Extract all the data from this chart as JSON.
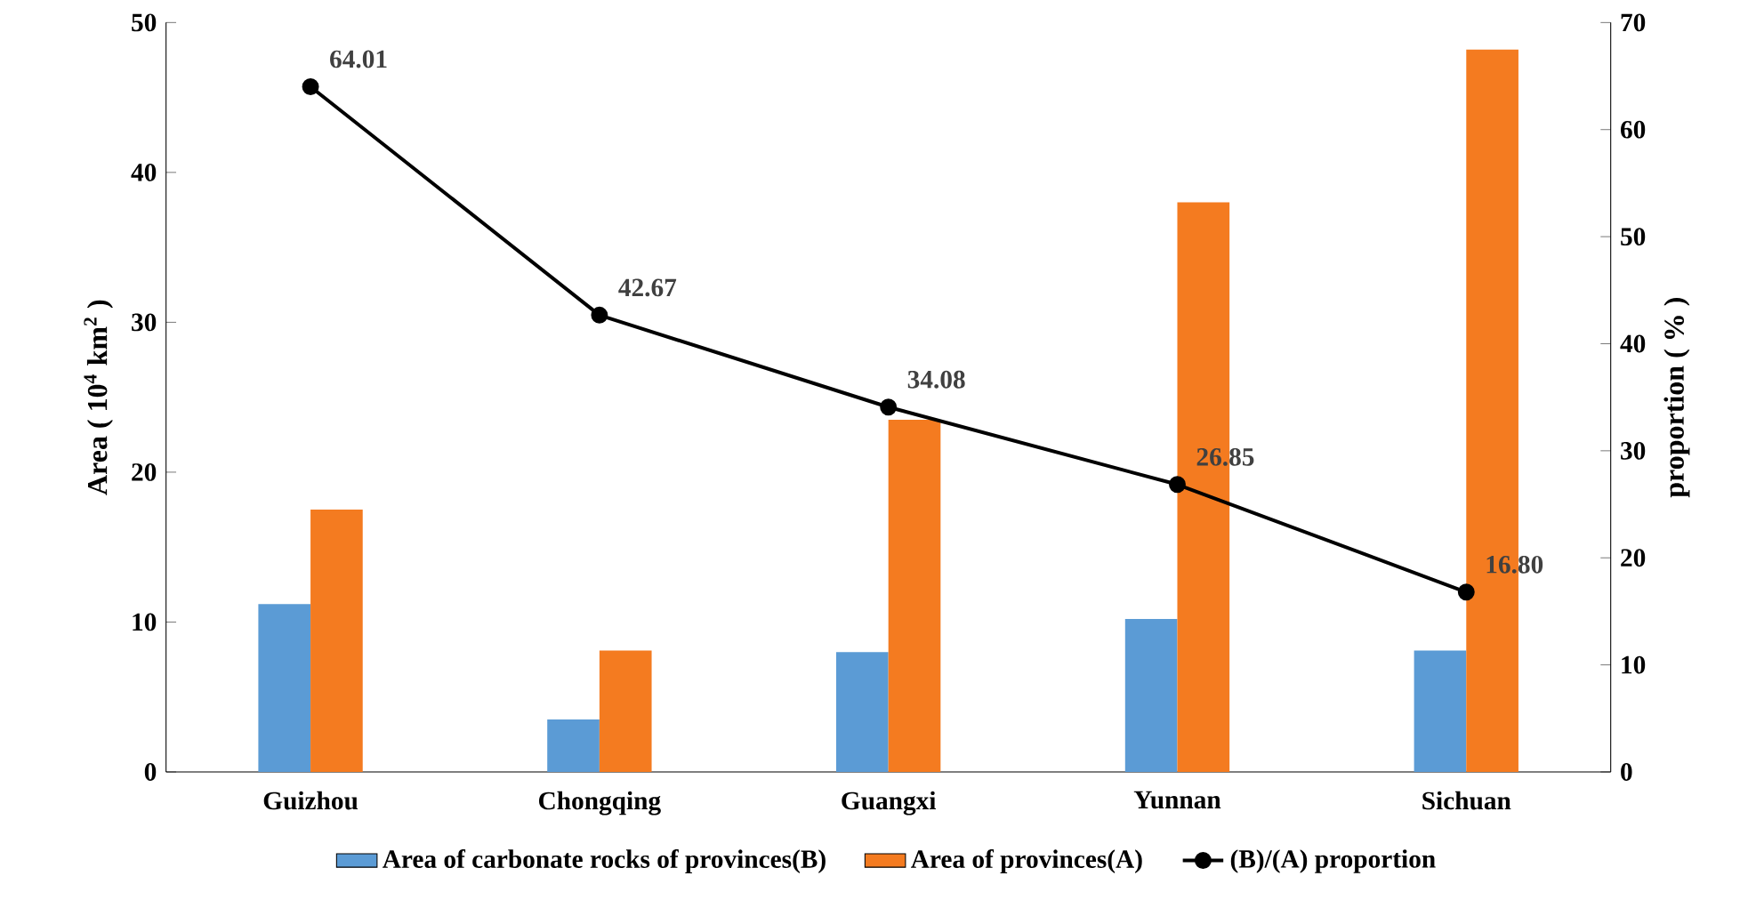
{
  "chart_data": {
    "type": "bar",
    "ylabel": "Area ( 10$^{4}$ km$^{2}$ )",
    "y2label": "proportion ( % )",
    "categories": [
      "Guizhou",
      "Chongqing",
      "Guangxi",
      "Yunnan",
      "Sichuan"
    ],
    "series": [
      {
        "name": "Area of carbonate rocks of provinces(B)",
        "color": "#5b9bd5",
        "values": [
          11.2,
          3.5,
          8.0,
          10.2,
          8.1
        ]
      },
      {
        "name": "Area of provinces(A)",
        "color": "#f47b20",
        "values": [
          17.5,
          8.1,
          23.5,
          38.0,
          48.2
        ]
      },
      {
        "name": "(B)/(A) proportion",
        "type": "line",
        "axis": "y2",
        "color": "#000000",
        "values": [
          64.01,
          42.67,
          34.08,
          26.85,
          16.8
        ],
        "value_labels": [
          "64.01",
          "42.67",
          "34.08",
          "26.85",
          "16.80"
        ]
      }
    ],
    "ylim": [
      0,
      50
    ],
    "yticks": [
      0,
      10,
      20,
      30,
      40,
      50
    ],
    "y2lim": [
      0,
      70
    ],
    "y2ticks": [
      0,
      10,
      20,
      30,
      40,
      50,
      60,
      70
    ],
    "marker": "circle",
    "line_style": "solid",
    "legend": "bottom",
    "grid": false
  }
}
